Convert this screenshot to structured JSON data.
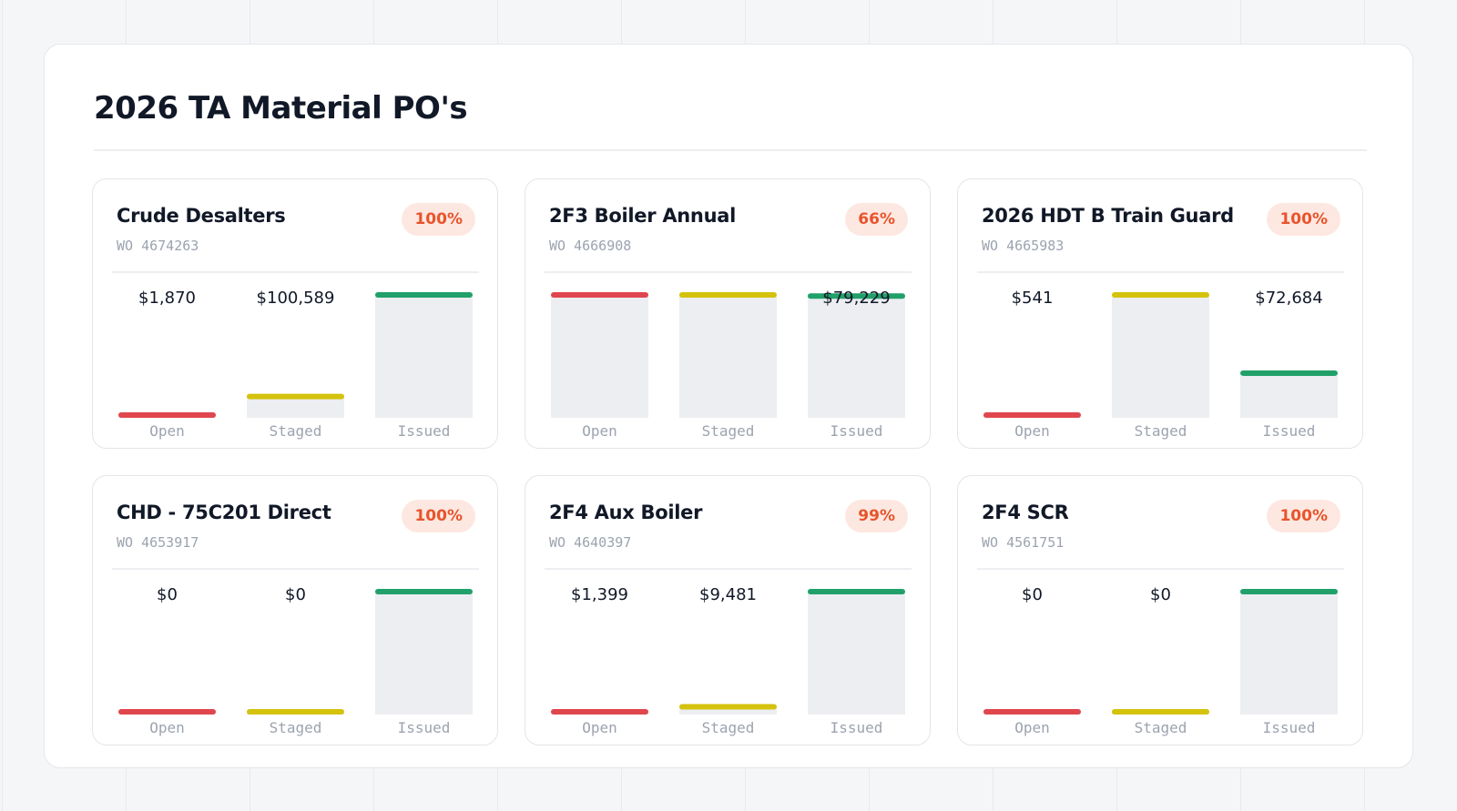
{
  "page": {
    "title": "2026 TA Material PO's"
  },
  "colors": {
    "open": "#e0464d",
    "staged": "#d4c20c",
    "issued": "#21a06a",
    "track": "#eceef1",
    "badge_bg": "#fde8e1",
    "badge_text": "#e8542c"
  },
  "chart_data": [
    {
      "type": "bar",
      "title": "Crude Desalters",
      "subtitle": "WO 4674263",
      "badge": "100%",
      "categories": [
        "Open",
        "Staged",
        "Issued"
      ],
      "values": [
        1870,
        100589,
        580000
      ],
      "value_labels": [
        "$1,870",
        "$100,589",
        ""
      ]
    },
    {
      "type": "bar",
      "title": "2F3 Boiler Annual",
      "subtitle": "WO 4666908",
      "badge": "66%",
      "categories": [
        "Open",
        "Staged",
        "Issued"
      ],
      "values": [
        80000,
        80000,
        79229
      ],
      "value_labels": [
        "",
        "",
        "$79,229"
      ]
    },
    {
      "type": "bar",
      "title": "2026 HDT B Train Guard",
      "subtitle": "WO 4665983",
      "badge": "100%",
      "categories": [
        "Open",
        "Staged",
        "Issued"
      ],
      "values": [
        541,
        200000,
        72684
      ],
      "value_labels": [
        "$541",
        "",
        "$72,684"
      ]
    },
    {
      "type": "bar",
      "title": "CHD - 75C201 Direct",
      "subtitle": "WO 4653917",
      "badge": "100%",
      "categories": [
        "Open",
        "Staged",
        "Issued"
      ],
      "values": [
        0,
        0,
        100000
      ],
      "value_labels": [
        "$0",
        "$0",
        ""
      ]
    },
    {
      "type": "bar",
      "title": "2F4 Aux Boiler",
      "subtitle": "WO 4640397",
      "badge": "99%",
      "categories": [
        "Open",
        "Staged",
        "Issued"
      ],
      "values": [
        1399,
        9481,
        150000
      ],
      "value_labels": [
        "$1,399",
        "$9,481",
        ""
      ]
    },
    {
      "type": "bar",
      "title": "2F4 SCR",
      "subtitle": "WO 4561751",
      "badge": "100%",
      "categories": [
        "Open",
        "Staged",
        "Issued"
      ],
      "values": [
        0,
        0,
        200000
      ],
      "value_labels": [
        "$0",
        "$0",
        ""
      ]
    }
  ]
}
